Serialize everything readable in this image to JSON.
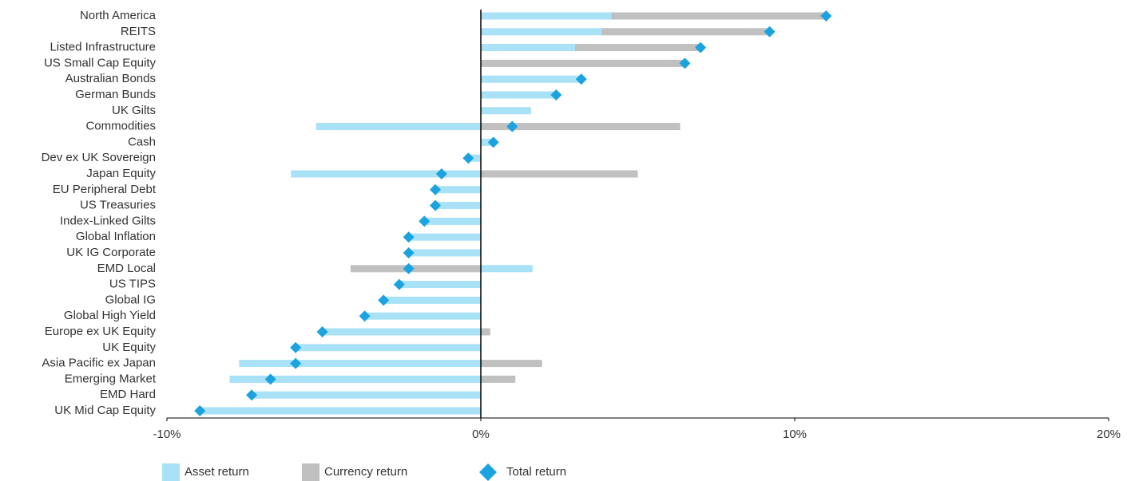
{
  "chart_data": {
    "type": "diverging-bar",
    "categories": [
      "North America",
      "REITS",
      "Listed Infrastructure",
      "US Small Cap Equity",
      "Australian Bonds",
      "German Bunds",
      "UK Gilts",
      "Commodities",
      "Cash",
      "Dev ex UK Sovereign",
      "Japan Equity",
      "EU Peripheral Debt",
      "US Treasuries",
      "Index-Linked Gilts",
      "Global Inflation",
      "UK IG Corporate",
      "EMD Local",
      "US TIPS",
      "Global IG",
      "Global High Yield",
      "Europe ex UK Equity",
      "UK Equity",
      "Asia Pacific ex Japan",
      "Emerging Market",
      "EMD Hard",
      "UK Mid Cap Equity"
    ],
    "series": [
      {
        "name": "Asset return",
        "color": "#a9e1f6",
        "values": [
          4.15,
          3.85,
          3.0,
          0,
          3.2,
          2.4,
          1.6,
          -5.25,
          0.4,
          -0.35,
          -6.05,
          -1.45,
          -1.45,
          -1.8,
          -2.3,
          -2.3,
          1.65,
          -2.6,
          -3.1,
          -3.7,
          -5.05,
          -5.9,
          -7.7,
          -8.0,
          -7.3,
          -8.95
        ]
      },
      {
        "name": "Currency return",
        "color": "#c0c0c0",
        "values": [
          6.9,
          5.35,
          4.0,
          6.5,
          0,
          0,
          0,
          6.35,
          0,
          0,
          5.0,
          0,
          0,
          0,
          0,
          0,
          -4.15,
          0,
          0,
          0,
          0.3,
          0,
          1.95,
          1.1,
          0,
          0
        ]
      },
      {
        "name": "Total return",
        "color": "#1aa3e0",
        "values": [
          11.0,
          9.2,
          7.0,
          6.5,
          3.2,
          2.4,
          null,
          1.0,
          0.4,
          -0.4,
          -1.25,
          -1.45,
          -1.45,
          -1.8,
          -2.3,
          -2.3,
          -2.3,
          -2.6,
          -3.1,
          -3.7,
          -5.05,
          -5.9,
          -5.9,
          -6.7,
          -7.3,
          -8.95
        ]
      }
    ],
    "xlim": [
      -10,
      20
    ],
    "xticks": [
      {
        "value": -10,
        "label": "-10%"
      },
      {
        "value": 0,
        "label": "0%"
      },
      {
        "value": 10,
        "label": "10%"
      },
      {
        "value": 20,
        "label": "20%"
      }
    ]
  }
}
